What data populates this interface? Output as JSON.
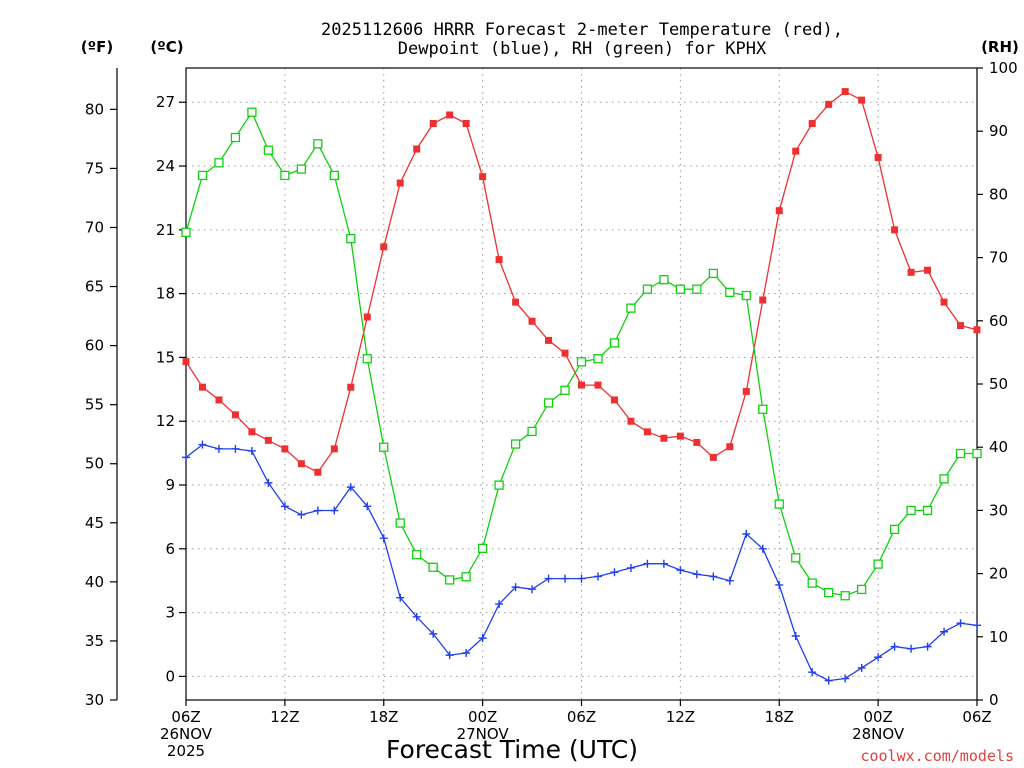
{
  "chart_data": {
    "type": "line",
    "title_lines": [
      "2025112606 HRRR Forecast 2-meter Temperature (red),",
      "Dewpoint (blue), RH (green) for KPHX"
    ],
    "xlabel": "Forecast Time (UTC)",
    "credit": "coolwx.com/models",
    "x_hours": [
      0,
      1,
      2,
      3,
      4,
      5,
      6,
      7,
      8,
      9,
      10,
      11,
      12,
      13,
      14,
      15,
      16,
      17,
      18,
      19,
      20,
      21,
      22,
      23,
      24,
      25,
      26,
      27,
      28,
      29,
      30,
      31,
      32,
      33,
      34,
      35,
      36,
      37,
      38,
      39,
      40,
      41,
      42,
      43,
      44,
      45,
      46,
      47,
      48
    ],
    "x_range": [
      0,
      48
    ],
    "x_ticks": [
      {
        "hour": 0,
        "lines": [
          "06Z",
          "26NOV",
          "2025"
        ]
      },
      {
        "hour": 6,
        "lines": [
          "12Z"
        ]
      },
      {
        "hour": 12,
        "lines": [
          "18Z"
        ]
      },
      {
        "hour": 18,
        "lines": [
          "00Z",
          "27NOV"
        ]
      },
      {
        "hour": 24,
        "lines": [
          "06Z"
        ]
      },
      {
        "hour": 30,
        "lines": [
          "12Z"
        ]
      },
      {
        "hour": 36,
        "lines": [
          "18Z"
        ]
      },
      {
        "hour": 42,
        "lines": [
          "00Z",
          "28NOV"
        ]
      },
      {
        "hour": 48,
        "lines": [
          "06Z"
        ]
      }
    ],
    "axes": {
      "fahrenheit": {
        "unit_label": "(ºF)",
        "range": [
          30,
          83.5
        ],
        "ticks": [
          30,
          35,
          40,
          45,
          50,
          55,
          60,
          65,
          70,
          75,
          80
        ]
      },
      "celsius": {
        "unit_label": "(ºC)",
        "range": [
          -1.11,
          28.61
        ],
        "ticks": [
          0,
          3,
          6,
          9,
          12,
          15,
          18,
          21,
          24,
          27
        ]
      },
      "rh": {
        "unit_label": "(RH)",
        "range": [
          0,
          100
        ],
        "ticks": [
          0,
          10,
          20,
          30,
          40,
          50,
          60,
          70,
          80,
          90,
          100
        ]
      }
    },
    "series": [
      {
        "name": "Temperature",
        "unit": "C",
        "color": "#ee3030",
        "marker": "filled-square",
        "values": [
          14.8,
          13.6,
          13.0,
          12.3,
          11.5,
          11.1,
          10.7,
          10.0,
          9.6,
          10.7,
          13.6,
          16.9,
          20.2,
          23.2,
          24.8,
          26.0,
          26.4,
          26.0,
          23.5,
          19.6,
          17.6,
          16.7,
          15.8,
          15.2,
          13.7,
          13.7,
          13.0,
          12.0,
          11.5,
          11.2,
          11.3,
          11.0,
          10.3,
          10.8,
          13.4,
          17.7,
          21.9,
          24.7,
          26.0,
          26.9,
          27.5,
          27.1,
          24.4,
          21.0,
          19.0,
          19.1,
          17.6,
          16.5,
          16.3
        ]
      },
      {
        "name": "Dewpoint",
        "unit": "C",
        "color": "#2040ee",
        "marker": "plus",
        "values": [
          10.3,
          10.9,
          10.7,
          10.7,
          10.6,
          9.1,
          8.0,
          7.6,
          7.8,
          7.8,
          8.9,
          8.0,
          6.5,
          3.7,
          2.8,
          2.0,
          1.0,
          1.1,
          1.8,
          3.4,
          4.2,
          4.1,
          4.6,
          4.6,
          4.6,
          4.7,
          4.9,
          5.1,
          5.3,
          5.3,
          5.0,
          4.8,
          4.7,
          4.5,
          6.7,
          6.0,
          4.3,
          1.9,
          0.2,
          -0.2,
          -0.1,
          0.4,
          0.9,
          1.4,
          1.3,
          1.4,
          2.1,
          2.5,
          2.4
        ]
      },
      {
        "name": "RH",
        "unit": "%",
        "color": "#10d010",
        "marker": "open-square",
        "values": [
          74,
          83,
          85,
          89,
          93,
          87,
          83,
          84,
          88,
          83,
          73,
          54,
          40,
          28,
          23,
          21,
          19,
          19.5,
          24,
          34,
          40.5,
          42.5,
          47,
          49,
          53.5,
          54,
          56.5,
          62,
          65,
          66.5,
          65,
          65,
          67.5,
          64.5,
          64,
          46,
          31,
          22.5,
          18.5,
          17,
          16.5,
          17.5,
          21.5,
          27,
          30,
          30,
          35,
          39,
          39
        ]
      }
    ]
  }
}
